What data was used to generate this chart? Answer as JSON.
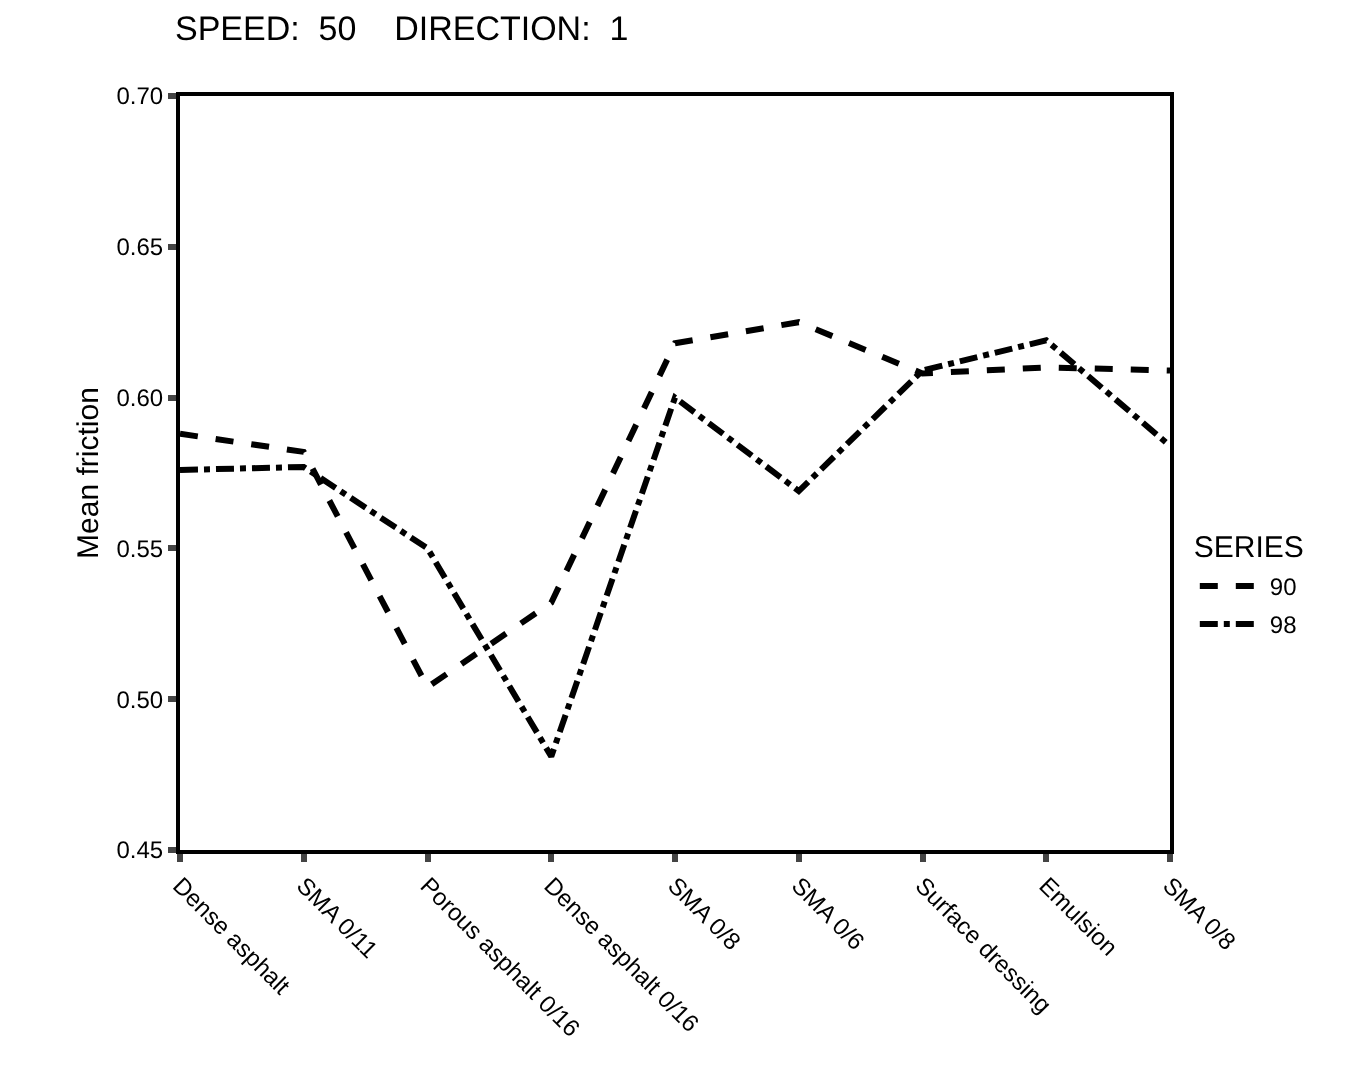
{
  "chart_data": {
    "type": "line",
    "title": "SPEED:  50    DIRECTION:  1",
    "ylabel": "Mean friction",
    "legend_title": "SERIES",
    "legend": "right",
    "grid": false,
    "marker": "none",
    "categories": [
      "Dense asphalt",
      "SMA 0/11",
      "Porous asphalt 0/16",
      "Dense asphalt 0/16",
      "SMA 0/8",
      "SMA 0/6",
      "Surface dressing",
      "Emulsion",
      "SMA 0/8"
    ],
    "ylim": [
      0.45,
      0.7
    ],
    "yticks": [
      {
        "value": 0.45,
        "label": "0.45"
      },
      {
        "value": 0.5,
        "label": "0.50"
      },
      {
        "value": 0.55,
        "label": "0.55"
      },
      {
        "value": 0.6,
        "label": "0.60"
      },
      {
        "value": 0.65,
        "label": "0.65"
      },
      {
        "value": 0.7,
        "label": "0.70"
      }
    ],
    "series": [
      {
        "name": "90",
        "color": "#000000",
        "line_style": "dashed",
        "values": [
          0.588,
          0.582,
          0.504,
          0.532,
          0.618,
          0.625,
          0.608,
          0.61,
          0.609
        ]
      },
      {
        "name": "98",
        "color": "#000000",
        "line_style": "dashdot",
        "values": [
          0.576,
          0.577,
          0.55,
          0.481,
          0.6,
          0.569,
          0.609,
          0.619,
          0.584
        ]
      }
    ]
  }
}
